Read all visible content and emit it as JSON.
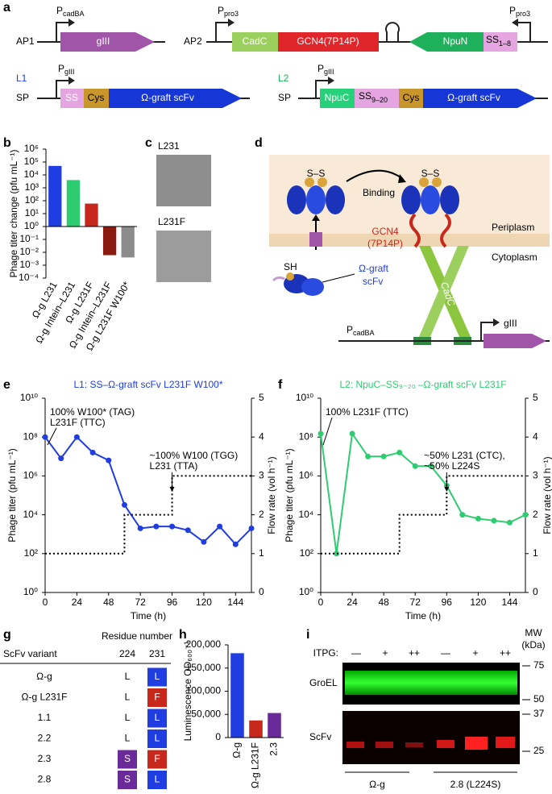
{
  "panel_labels": [
    "a",
    "b",
    "c",
    "d",
    "e",
    "f",
    "g",
    "h",
    "i"
  ],
  "panel_a": {
    "ap1": {
      "name": "AP1",
      "promoter": {
        "p": "P",
        "sub": "cadBA"
      },
      "gene": "gIII"
    },
    "ap2": {
      "name": "AP2",
      "promoter1": {
        "p": "P",
        "sub": "pro3"
      },
      "promoter2": {
        "p": "P",
        "sub": "pro3"
      },
      "genes": [
        "CadC",
        "GCN4(7P14P)",
        "NpuN"
      ],
      "ss": {
        "main": "SS",
        "sub": "1–8"
      }
    },
    "l1": {
      "name": "L1",
      "sp": "SP",
      "promoter": {
        "p": "P",
        "sub": "gIII"
      },
      "parts": [
        "SS",
        "Cys",
        "Ω-graft scFv"
      ]
    },
    "l2": {
      "name": "L2",
      "sp": "SP",
      "promoter": {
        "p": "P",
        "sub": "gIII"
      },
      "npuc": "NpuC",
      "ss": {
        "main": "SS",
        "sub": "9–20"
      },
      "cys": "Cys",
      "scfv": "Ω-graft scFv"
    }
  },
  "panel_c": {
    "labels": [
      "L231",
      "L231F"
    ]
  },
  "panel_d": {
    "ss": [
      "S–S",
      "S–S"
    ],
    "binding": "Binding",
    "gcn4": [
      "GCN4",
      "(7P14P)"
    ],
    "periplasm": "Periplasm",
    "cytoplasm": "Cytoplasm",
    "sh": "SH",
    "scfv": [
      "Ω-graft",
      "scFv"
    ],
    "cadc": "CadC",
    "promoter": {
      "p": "P",
      "sub": "cadBA"
    },
    "gene": "gIII"
  },
  "chart_data": [
    {
      "type": "bar",
      "ylabel": "Phage titer change (pfu mL⁻¹)",
      "log": true,
      "categories": [
        "Ω-g L231",
        "Ω-g Intein–L231",
        "Ω-g L231F",
        "Ω-g Intein–L231F",
        "Ω-g L231F W100*"
      ],
      "values": [
        50000,
        4000,
        60,
        0.006,
        0.004
      ],
      "colors": [
        "#1f3de0",
        "#2ecc71",
        "#c8281c",
        "#8b1a10",
        "#8c8c8c"
      ],
      "ylim": [
        0.0001,
        1000000
      ],
      "yticks": [
        {
          "value": 0.0001,
          "label": "10⁻⁴"
        },
        {
          "value": 0.001,
          "label": "10⁻³"
        },
        {
          "value": 0.01,
          "label": "10⁻²"
        },
        {
          "value": 0.1,
          "label": "10⁻¹"
        },
        {
          "value": 1,
          "label": "10⁰"
        },
        {
          "value": 10,
          "label": "10¹"
        },
        {
          "value": 100,
          "label": "10²"
        },
        {
          "value": 1000,
          "label": "10³"
        },
        {
          "value": 10000,
          "label": "10⁴"
        },
        {
          "value": 100000,
          "label": "10⁵"
        },
        {
          "value": 1000000,
          "label": "10⁶"
        }
      ]
    },
    {
      "type": "line",
      "title": "L1: SS–Ω-graft scFv L231F W100*",
      "xlabel": "Time (h)",
      "ylabel": "Phage titer (pfu mL⁻¹)",
      "y2label": "Flow rate (vol h⁻¹)",
      "log": true,
      "xlim": [
        0,
        156
      ],
      "xticks": [
        0,
        24,
        48,
        72,
        96,
        120,
        144
      ],
      "ylim": [
        1,
        10000000000
      ],
      "yticks": [
        {
          "value": 1,
          "label": "10⁰"
        },
        {
          "value": 100,
          "label": "10²"
        },
        {
          "value": 10000,
          "label": "10⁴"
        },
        {
          "value": 1000000,
          "label": "10⁶"
        },
        {
          "value": 100000000,
          "label": "10⁸"
        },
        {
          "value": 10000000000,
          "label": "10¹⁰"
        }
      ],
      "y2lim": [
        0,
        5
      ],
      "y2ticks": [
        0,
        1,
        2,
        3,
        4,
        5
      ],
      "series": [
        {
          "color": "#1f3de0",
          "marker": true,
          "x": [
            0,
            12,
            24,
            36,
            48,
            60,
            72,
            84,
            96,
            108,
            120,
            132,
            144,
            156
          ],
          "values": [
            100000000,
            8000000,
            100000000,
            16000000,
            6300000,
            32000,
            2000,
            2500,
            2500,
            1600,
            400,
            2500,
            300,
            2000
          ]
        },
        {
          "color": "#000000",
          "axis": "y2",
          "style": "dotted",
          "x": [
            0,
            60,
            60,
            96,
            96,
            156
          ],
          "values": [
            1,
            1,
            2,
            2,
            3,
            3
          ]
        }
      ],
      "annotations": [
        [
          "100% W100* (TAG)",
          "L231F (TTC)"
        ],
        [
          "~100% W100 (TGG)",
          "L231 (TTA)"
        ]
      ]
    },
    {
      "type": "line",
      "title": "L2: NpuC–SS₉₋₂₀ –Ω-graft scFv L231F",
      "xlabel": "Time (h)",
      "ylabel": "Phage titer (pfu mL⁻¹)",
      "y2label": "Flow rate (vol h⁻¹)",
      "log": true,
      "xlim": [
        0,
        156
      ],
      "xticks": [
        0,
        24,
        48,
        72,
        96,
        120,
        144
      ],
      "ylim": [
        1,
        10000000000
      ],
      "yticks": [
        {
          "value": 1,
          "label": "10⁰"
        },
        {
          "value": 100,
          "label": "10²"
        },
        {
          "value": 10000,
          "label": "10⁴"
        },
        {
          "value": 1000000,
          "label": "10⁶"
        },
        {
          "value": 100000000,
          "label": "10⁸"
        },
        {
          "value": 10000000000,
          "label": "10¹⁰"
        }
      ],
      "y2lim": [
        0,
        5
      ],
      "y2ticks": [
        0,
        1,
        2,
        3,
        4,
        5
      ],
      "series": [
        {
          "color": "#2ecc71",
          "marker": true,
          "x": [
            0,
            12,
            24,
            36,
            48,
            60,
            72,
            84,
            96,
            108,
            120,
            132,
            144,
            156
          ],
          "values": [
            150000000,
            100,
            150000000,
            10000000,
            10000000,
            16000000,
            3200000,
            3200000,
            320000,
            10000,
            6300,
            5000,
            4000,
            10000
          ]
        },
        {
          "color": "#000000",
          "axis": "y2",
          "style": "dotted",
          "x": [
            0,
            60,
            60,
            96,
            96,
            156
          ],
          "values": [
            1,
            1,
            2,
            2,
            3,
            3
          ]
        }
      ],
      "annotations": [
        [
          "100% L231F (TTC)"
        ],
        [
          "~50% L231 (CTC),",
          "~50% L224S"
        ]
      ]
    },
    {
      "type": "bar",
      "ylabel": "Luminescence OD₆₀₀⁻¹",
      "log": false,
      "categories": [
        "Ω-g",
        "Ω-g L231F",
        "2.3"
      ],
      "values": [
        182000,
        37000,
        53000
      ],
      "colors": [
        "#1f3de0",
        "#c8281c",
        "#6a2a9a"
      ],
      "ylim": [
        0,
        200000
      ],
      "yticks": [
        0,
        {
          "value": 50000,
          "label": "50,000"
        },
        {
          "value": 100000,
          "label": "100,000"
        },
        {
          "value": 150000,
          "label": "150,000"
        },
        {
          "value": 200000,
          "label": "200,000"
        }
      ]
    }
  ],
  "panel_g": {
    "header": "Residue number",
    "columns": [
      "ScFv variant",
      "224",
      "231"
    ],
    "rows": [
      [
        "Ω-g",
        "L",
        "L"
      ],
      [
        "Ω-g L231F",
        "L",
        "F"
      ],
      [
        "1.1",
        "L",
        "L"
      ],
      [
        "2.2",
        "L",
        "L"
      ],
      [
        "2.3",
        "S",
        "F"
      ],
      [
        "2.8",
        "S",
        "L"
      ]
    ],
    "cell_colors": [
      [
        null,
        "#1f3de0"
      ],
      [
        null,
        "#c8281c"
      ],
      [
        null,
        "#1f3de0"
      ],
      [
        null,
        "#1f3de0"
      ],
      [
        "#6a2a9a",
        "#c8281c"
      ],
      [
        "#6a2a9a",
        "#1f3de0"
      ]
    ]
  },
  "panel_i": {
    "itpg": "ITPG:",
    "lanes": [
      "—",
      "+",
      "++",
      "—",
      "+",
      "++"
    ],
    "mw": "MW",
    "mw_unit": "(kDa)",
    "markers": [
      "75",
      "50",
      "37",
      "25"
    ],
    "bands": [
      "GroEL",
      "ScFv"
    ],
    "groups": [
      "Ω-g",
      "2.8 (L224S)"
    ]
  }
}
